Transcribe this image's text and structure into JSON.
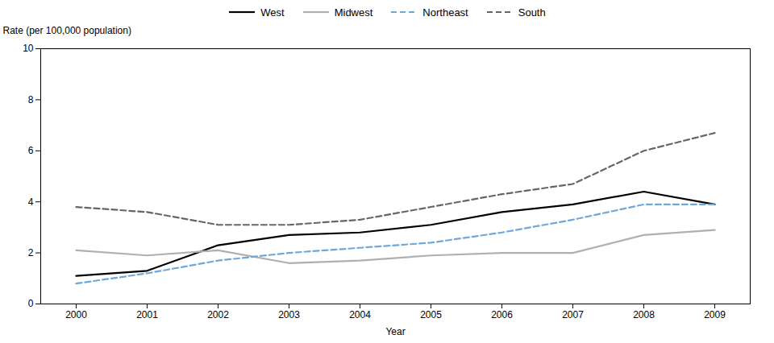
{
  "chart_data": {
    "type": "line",
    "x_label": "Year",
    "y_label": "Rate (per 100,000 population)",
    "x": [
      2000,
      2001,
      2002,
      2003,
      2004,
      2005,
      2006,
      2007,
      2008,
      2009
    ],
    "series": [
      {
        "name": "West",
        "color": "#000000",
        "line_style": "solid",
        "values": [
          1.1,
          1.3,
          2.3,
          2.7,
          2.8,
          3.1,
          3.6,
          3.9,
          4.4,
          3.9
        ]
      },
      {
        "name": "Midwest",
        "color": "#b0b0b0",
        "line_style": "solid",
        "values": [
          2.1,
          1.9,
          2.1,
          1.6,
          1.7,
          1.9,
          2.0,
          2.0,
          2.7,
          2.9
        ]
      },
      {
        "name": "Northeast",
        "color": "#6fa8d8",
        "line_style": "dashed",
        "values": [
          0.8,
          1.2,
          1.7,
          2.0,
          2.2,
          2.4,
          2.8,
          3.3,
          3.9,
          3.9
        ]
      },
      {
        "name": "South",
        "color": "#666666",
        "line_style": "dashed",
        "values": [
          3.8,
          3.6,
          3.1,
          3.1,
          3.3,
          3.8,
          4.3,
          4.7,
          6.0,
          6.7
        ]
      }
    ],
    "xlim": [
      1999.5,
      2009.5
    ],
    "ylim": [
      0,
      10
    ],
    "xticks": [
      2000,
      2001,
      2002,
      2003,
      2004,
      2005,
      2006,
      2007,
      2008,
      2009
    ],
    "yticks": [
      0,
      2,
      4,
      6,
      8,
      10
    ],
    "grid": false,
    "legend": "top"
  }
}
